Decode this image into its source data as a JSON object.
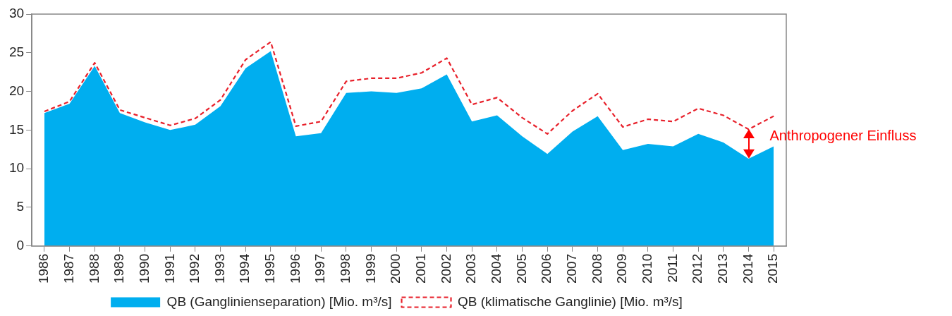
{
  "chart_data": {
    "type": "area",
    "categories": [
      "1986",
      "1987",
      "1988",
      "1989",
      "1990",
      "1991",
      "1992",
      "1993",
      "1994",
      "1995",
      "1996",
      "1997",
      "1998",
      "1999",
      "2000",
      "2001",
      "2002",
      "2003",
      "2004",
      "2005",
      "2006",
      "2007",
      "2008",
      "2009",
      "2010",
      "2011",
      "2012",
      "2013",
      "2014",
      "2015"
    ],
    "series": [
      {
        "name": "QB (Ganglinienseparation) [Mio. m³/s]",
        "type": "area",
        "color": "#00aeef",
        "values": [
          17.2,
          18.4,
          23.3,
          17.2,
          16.0,
          15.0,
          15.7,
          18.1,
          23.0,
          25.2,
          14.2,
          14.6,
          19.8,
          20.0,
          19.8,
          20.4,
          22.2,
          16.1,
          16.9,
          14.2,
          11.9,
          14.8,
          16.8,
          12.4,
          13.2,
          12.9,
          14.5,
          13.4,
          11.3,
          12.9
        ]
      },
      {
        "name": "QB (klimatische Ganglinie) [Mio. m³/s]",
        "type": "line",
        "line_style": "dashed",
        "color": "#e8212b",
        "values": [
          17.4,
          18.7,
          23.7,
          17.6,
          16.6,
          15.6,
          16.5,
          18.9,
          24.1,
          26.4,
          15.5,
          16.1,
          21.3,
          21.7,
          21.7,
          22.4,
          24.3,
          18.3,
          19.2,
          16.6,
          14.5,
          17.5,
          19.7,
          15.4,
          16.4,
          16.1,
          17.8,
          16.9,
          15.1,
          16.8
        ]
      }
    ],
    "ylim": [
      0,
      30
    ],
    "yticks": [
      0,
      5,
      10,
      15,
      20,
      25,
      30
    ],
    "grid": false,
    "legend": "bottom",
    "marker": "none",
    "annotations": [
      {
        "text": "Anthropogener Einfluss",
        "x": "2014",
        "y": 15.1
      }
    ]
  }
}
